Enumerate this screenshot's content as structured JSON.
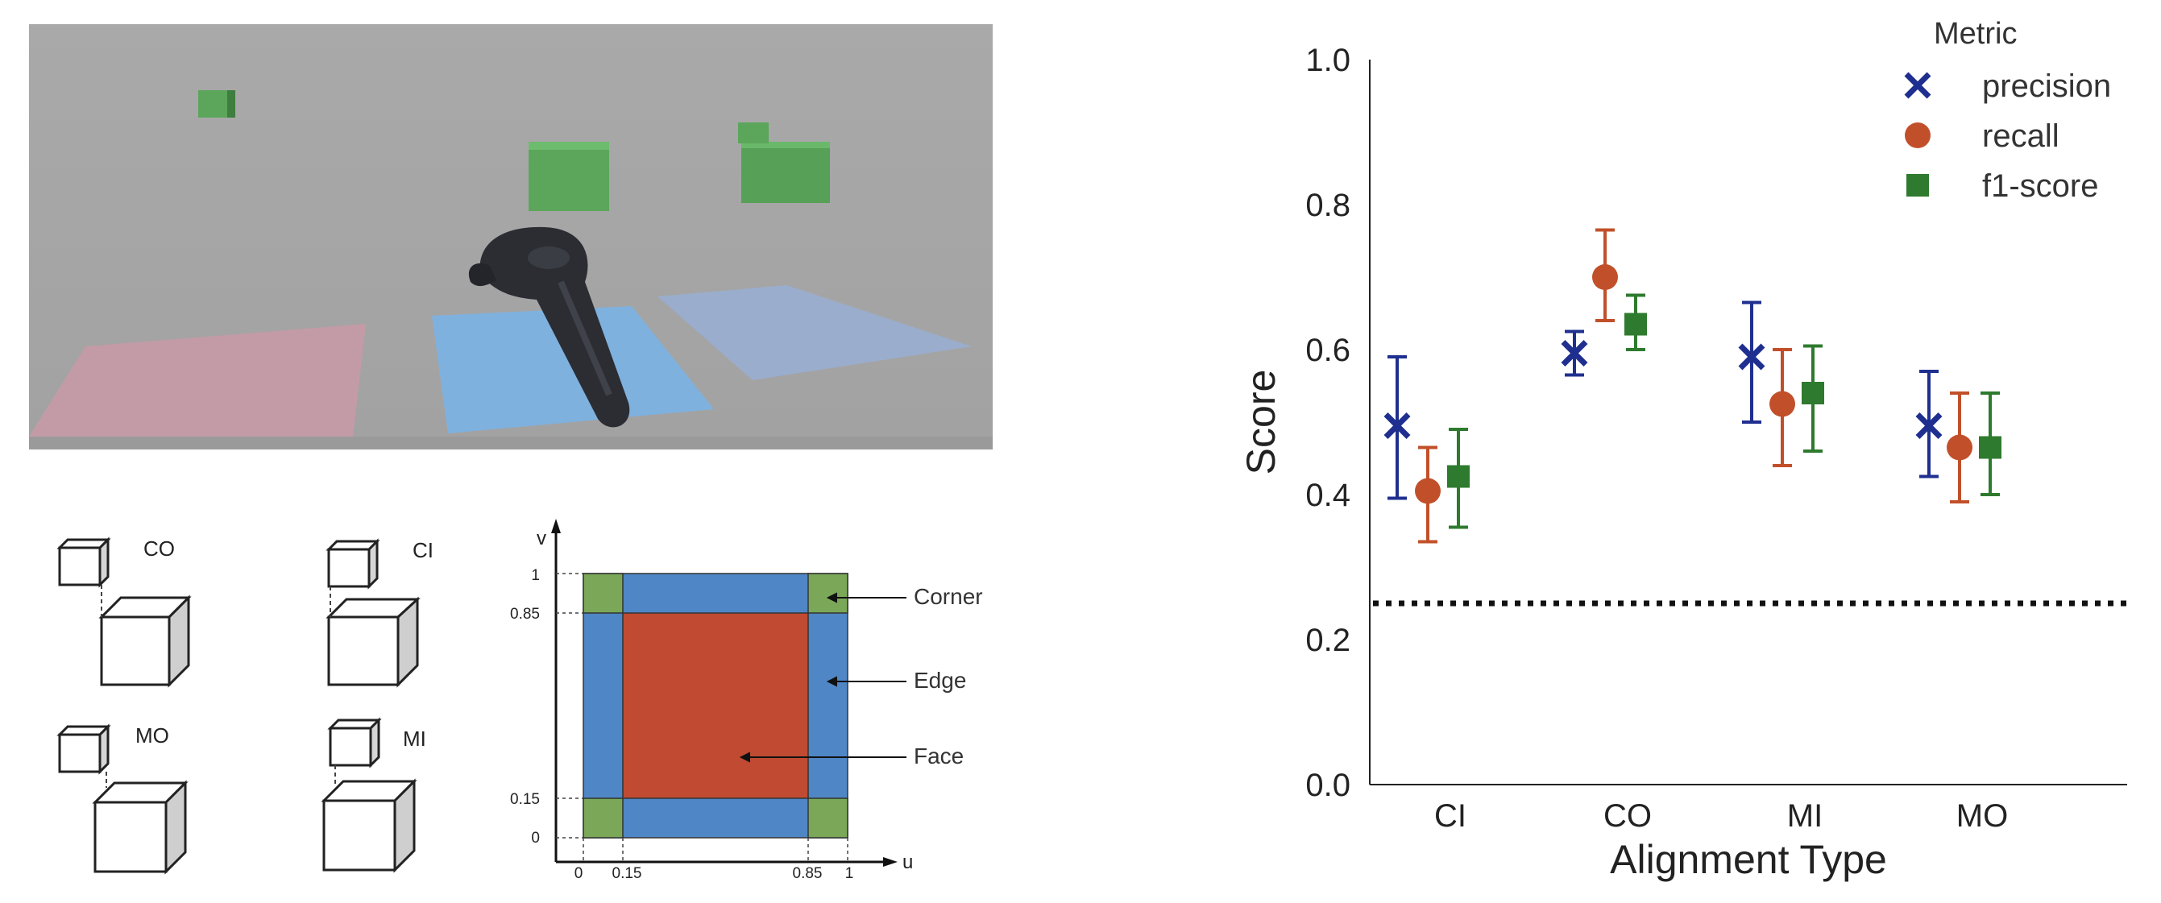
{
  "figure": {
    "alignment_diagrams": [
      {
        "label": "CO"
      },
      {
        "label": "CI"
      },
      {
        "label": "MO"
      },
      {
        "label": "MI"
      }
    ],
    "uv_diagram": {
      "axis_u": "u",
      "axis_v": "v",
      "u_ticks": [
        "0",
        "0.15",
        "0.85",
        "1"
      ],
      "v_ticks": [
        "1",
        "0.85",
        "0.15",
        "0"
      ],
      "regions": [
        {
          "label": "Corner",
          "color": "#7aa858"
        },
        {
          "label": "Edge",
          "color": "#4f86c6"
        },
        {
          "label": "Face",
          "color": "#c04b32"
        }
      ]
    }
  },
  "chart_data": {
    "type": "scatter",
    "xlabel": "Alignment Type",
    "ylabel": "Score",
    "categories": [
      "CI",
      "CO",
      "MI",
      "MO"
    ],
    "ylim": [
      0.0,
      1.0
    ],
    "yticks": [
      "0.0",
      "0.2",
      "0.4",
      "0.6",
      "0.8",
      "1.0"
    ],
    "legend_title": "Metric",
    "legend_position": "top-right",
    "baseline": 0.25,
    "series": [
      {
        "name": "precision",
        "color": "#1f2f8f",
        "marker": "x",
        "values": [
          0.495,
          0.595,
          0.59,
          0.495
        ],
        "lower": [
          0.395,
          0.565,
          0.5,
          0.425
        ],
        "upper": [
          0.59,
          0.625,
          0.665,
          0.57
        ]
      },
      {
        "name": "recall",
        "color": "#c1502a",
        "marker": "circle",
        "values": [
          0.405,
          0.7,
          0.525,
          0.465
        ],
        "lower": [
          0.335,
          0.64,
          0.44,
          0.39
        ],
        "upper": [
          0.465,
          0.765,
          0.6,
          0.54
        ]
      },
      {
        "name": "f1-score",
        "color": "#2e7a2e",
        "marker": "square",
        "values": [
          0.425,
          0.635,
          0.54,
          0.465
        ],
        "lower": [
          0.355,
          0.6,
          0.46,
          0.4
        ],
        "upper": [
          0.49,
          0.675,
          0.605,
          0.54
        ]
      }
    ]
  }
}
